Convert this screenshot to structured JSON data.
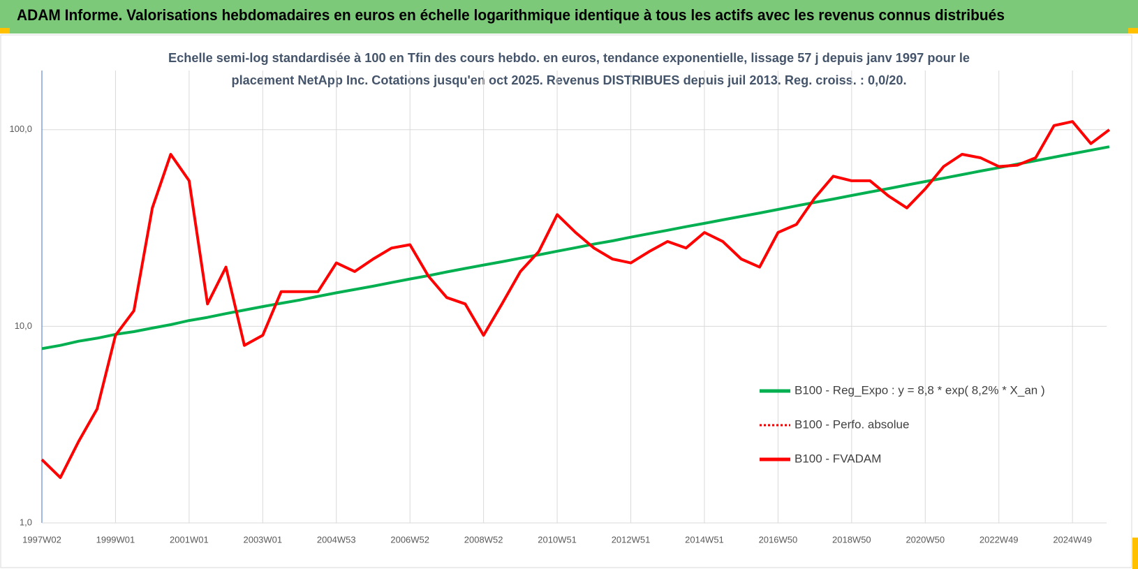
{
  "chart_data": {
    "type": "line",
    "title": "ADAM Informe. Valorisations hebdomadaires en euros en échelle logarithmique identique à tous les actifs avec les revenus connus distribués",
    "subtitle": [
      "Echelle semi-log standardisée à 100 en Tfin des cours hebdo. en euros, tendance exponentielle, lissage 57 j depuis janv 1997 pour le",
      "placement NetApp Inc. Cotations jusqu'en oct 2025. Revenus DISTRIBUES depuis juil 2013. Reg. croiss. : 0,0/20."
    ],
    "categories": [
      "1997W02",
      null,
      null,
      null,
      "1999W01",
      null,
      null,
      null,
      "2001W01",
      null,
      null,
      null,
      "2003W01",
      null,
      null,
      null,
      "2004W53",
      null,
      null,
      null,
      "2006W52",
      null,
      null,
      null,
      "2008W52",
      null,
      null,
      null,
      "2010W51",
      null,
      null,
      null,
      "2012W51",
      null,
      null,
      null,
      "2014W51",
      null,
      null,
      null,
      "2016W50",
      null,
      null,
      null,
      "2018W50",
      null,
      null,
      null,
      "2020W50",
      null,
      null,
      null,
      "2022W49",
      null,
      null,
      null,
      "2024W49",
      null,
      null
    ],
    "yscale": "log",
    "ylim": [
      1,
      200
    ],
    "yticks": [
      {
        "value": 1,
        "label": "1,0"
      },
      {
        "value": 10,
        "label": "10,0"
      },
      {
        "value": 100,
        "label": "100,0"
      }
    ],
    "grid": true,
    "legend": "lower right",
    "series": [
      {
        "name": "B100 - Reg_Expo : y = 8,8 * exp( 8,2% *  X_an )",
        "color": "#00b050",
        "dash": "solid",
        "values": [
          7.7,
          8.0,
          8.4,
          8.7,
          9.1,
          9.4,
          9.8,
          10.2,
          10.7,
          11.1,
          11.6,
          12.1,
          12.6,
          13.1,
          13.6,
          14.2,
          14.8,
          15.4,
          16.0,
          16.7,
          17.4,
          18.1,
          18.9,
          19.7,
          20.5,
          21.3,
          22.2,
          23.1,
          24.1,
          25.1,
          26.2,
          27.2,
          28.4,
          29.6,
          30.8,
          32.1,
          33.4,
          34.8,
          36.2,
          37.7,
          39.3,
          41.0,
          42.7,
          44.4,
          46.3,
          48.2,
          50.2,
          52.3,
          54.5,
          56.7,
          59.1,
          61.6,
          64.1,
          66.8,
          69.6,
          72.5,
          75.5,
          78.6,
          81.9
        ]
      },
      {
        "name": "B100 - Perfo. absolue",
        "color": "#e00000",
        "dash": "dotted",
        "values": [
          2.1,
          1.7,
          2.6,
          3.8,
          9,
          12,
          40,
          75,
          55,
          13,
          20,
          8,
          9,
          15,
          15,
          15,
          21,
          19,
          22,
          25,
          26,
          18,
          14,
          13,
          9,
          13,
          19,
          24,
          37,
          30,
          25,
          22,
          21,
          24,
          27,
          25,
          30,
          27,
          22,
          20,
          30,
          33,
          45,
          58,
          55,
          55,
          46,
          40,
          50,
          65,
          75,
          72,
          65,
          66,
          72,
          105,
          110,
          85,
          100
        ]
      },
      {
        "name": "B100 - FVADAM",
        "color": "#ff0000",
        "dash": "solid",
        "values": [
          2.1,
          1.7,
          2.6,
          3.8,
          9,
          12,
          40,
          75,
          55,
          13,
          20,
          8,
          9,
          15,
          15,
          15,
          21,
          19,
          22,
          25,
          26,
          18,
          14,
          13,
          9,
          13,
          19,
          24,
          37,
          30,
          25,
          22,
          21,
          24,
          27,
          25,
          30,
          27,
          22,
          20,
          30,
          33,
          45,
          58,
          55,
          55,
          46,
          40,
          50,
          65,
          75,
          72,
          65,
          66,
          72,
          105,
          110,
          85,
          100
        ]
      }
    ]
  }
}
